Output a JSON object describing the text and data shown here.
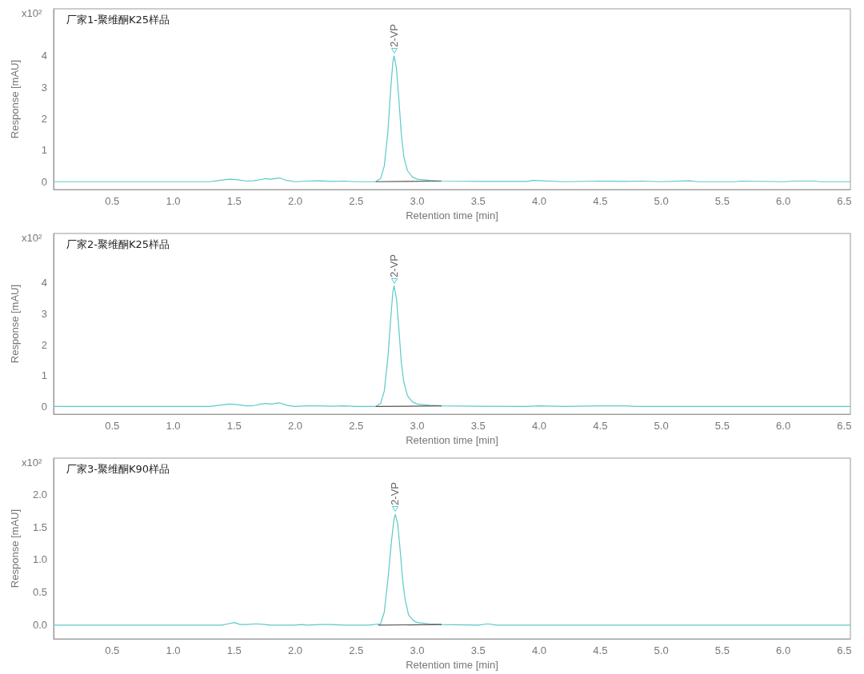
{
  "chart_data": [
    {
      "type": "line",
      "title": "厂家1-聚维酮K25样品",
      "xlabel": "Retention time [min]",
      "ylabel": "Response [mAU]",
      "xlim": [
        0.02,
        6.55
      ],
      "ylim": [
        -0.25,
        5.5
      ],
      "xticks": [
        0.5,
        {
          "value": 1,
          "label": "1.0"
        },
        1.5,
        {
          "value": 2,
          "label": "2.0"
        },
        2.5,
        {
          "value": 3,
          "label": "3.0"
        },
        3.5,
        {
          "value": 4,
          "label": "4.0"
        },
        4.5,
        {
          "value": 5,
          "label": "5.0"
        },
        5.5,
        {
          "value": 6,
          "label": "6.0"
        },
        6.5
      ],
      "yticks": [
        0,
        1,
        2,
        3,
        4
      ],
      "grid": false,
      "marker": "none",
      "line_style": "solid",
      "annotations": [
        "x10²",
        "2-VP"
      ],
      "series": [
        {
          "color": "#5cc9c9",
          "x": [
            0.02,
            1.3,
            1.38,
            1.46,
            1.53,
            1.6,
            1.66,
            1.72,
            1.76,
            1.8,
            1.87,
            1.93,
            2.0,
            2.1,
            2.2,
            2.3,
            2.4,
            2.5,
            2.6,
            2.66,
            2.7,
            2.73,
            2.76,
            2.78,
            2.8,
            2.81,
            2.83,
            2.85,
            2.87,
            2.89,
            2.92,
            2.96,
            3.0,
            3.1,
            3.2,
            3.5,
            3.9,
            3.95,
            4.2,
            4.5,
            4.7,
            4.85,
            5.0,
            5.23,
            5.3,
            5.6,
            5.65,
            6.0,
            6.1,
            6.25,
            6.3,
            6.55
          ],
          "values": [
            0,
            0,
            0.04,
            0.08,
            0.06,
            0.02,
            0.03,
            0.07,
            0.1,
            0.08,
            0.12,
            0.04,
            0,
            0.02,
            0.03,
            0.01,
            0.02,
            0,
            0,
            0,
            0.1,
            0.5,
            1.6,
            2.8,
            3.8,
            4.0,
            3.6,
            2.6,
            1.5,
            0.8,
            0.35,
            0.15,
            0.08,
            0.04,
            0.02,
            0.01,
            0.01,
            0.04,
            0,
            0.02,
            0.01,
            0.02,
            0,
            0.03,
            0,
            0,
            0.02,
            0,
            0.02,
            0.02,
            0,
            0
          ]
        },
        {
          "color": "#555555",
          "x": [
            2.66,
            3.2
          ],
          "values": [
            0,
            0.02
          ]
        }
      ]
    },
    {
      "type": "line",
      "title": "厂家2-聚维酮K25样品",
      "xlabel": "Retention time [min]",
      "ylabel": "Response [mAU]",
      "xlim": [
        0.02,
        6.55
      ],
      "ylim": [
        -0.25,
        5.6
      ],
      "xticks": [
        0.5,
        {
          "value": 1,
          "label": "1.0"
        },
        1.5,
        {
          "value": 2,
          "label": "2.0"
        },
        2.5,
        {
          "value": 3,
          "label": "3.0"
        },
        3.5,
        {
          "value": 4,
          "label": "4.0"
        },
        4.5,
        {
          "value": 5,
          "label": "5.0"
        },
        5.5,
        {
          "value": 6,
          "label": "6.0"
        },
        6.5
      ],
      "yticks": [
        0,
        1,
        2,
        3,
        4
      ],
      "grid": false,
      "marker": "none",
      "line_style": "solid",
      "annotations": [
        "x10²",
        "2-VP"
      ],
      "series": [
        {
          "color": "#5cc9c9",
          "x": [
            0.02,
            1.3,
            1.38,
            1.46,
            1.53,
            1.6,
            1.66,
            1.72,
            1.76,
            1.8,
            1.87,
            1.93,
            2.0,
            2.1,
            2.2,
            2.3,
            2.4,
            2.5,
            2.6,
            2.66,
            2.7,
            2.73,
            2.76,
            2.78,
            2.8,
            2.81,
            2.83,
            2.85,
            2.87,
            2.89,
            2.92,
            2.96,
            3.0,
            3.1,
            3.2,
            3.5,
            3.9,
            4.0,
            4.2,
            4.5,
            4.7,
            4.8,
            5.0,
            5.5,
            6.0,
            6.55
          ],
          "values": [
            0,
            0,
            0.04,
            0.08,
            0.06,
            0.02,
            0.03,
            0.08,
            0.1,
            0.08,
            0.12,
            0.04,
            0,
            0.02,
            0.02,
            0.01,
            0.02,
            0,
            0,
            0,
            0.1,
            0.5,
            1.6,
            2.7,
            3.7,
            3.9,
            3.5,
            2.5,
            1.4,
            0.8,
            0.35,
            0.15,
            0.08,
            0.04,
            0.02,
            0.01,
            0,
            0.02,
            0,
            0.02,
            0.02,
            0,
            0,
            0,
            0,
            0
          ]
        },
        {
          "color": "#555555",
          "x": [
            2.66,
            3.2
          ],
          "values": [
            0,
            0.02
          ]
        }
      ]
    },
    {
      "type": "line",
      "title": "厂家3-聚维酮K90样品",
      "xlabel": "Retention time [min]",
      "ylabel": "Response [mAU]",
      "xlim": [
        0.02,
        6.55
      ],
      "ylim": [
        -0.21,
        2.55
      ],
      "xticks": [
        0.5,
        {
          "value": 1,
          "label": "1.0"
        },
        1.5,
        {
          "value": 2,
          "label": "2.0"
        },
        2.5,
        {
          "value": 3,
          "label": "3.0"
        },
        3.5,
        {
          "value": 4,
          "label": "4.0"
        },
        4.5,
        {
          "value": 5,
          "label": "5.0"
        },
        5.5,
        {
          "value": 6,
          "label": "6.0"
        },
        6.5
      ],
      "yticks": [
        {
          "value": 0,
          "label": "0.0"
        },
        0.5,
        {
          "value": 1,
          "label": "1.0"
        },
        1.5,
        {
          "value": 2,
          "label": "2.0"
        }
      ],
      "grid": false,
      "marker": "none",
      "line_style": "solid",
      "annotations": [
        "x10²",
        "2-VP"
      ],
      "series": [
        {
          "color": "#5cc9c9",
          "x": [
            0.02,
            1.4,
            1.45,
            1.5,
            1.55,
            1.6,
            1.68,
            1.75,
            1.8,
            2.0,
            2.05,
            2.1,
            2.2,
            2.3,
            2.4,
            2.6,
            2.7,
            2.73,
            2.76,
            2.79,
            2.81,
            2.82,
            2.84,
            2.86,
            2.88,
            2.9,
            2.93,
            2.97,
            3.0,
            3.1,
            3.2,
            3.5,
            3.58,
            3.65,
            3.8,
            4.5,
            5.5,
            6.55
          ],
          "values": [
            0,
            0,
            0.02,
            0.04,
            0.01,
            0.01,
            0.02,
            0.01,
            0,
            0,
            0.01,
            0,
            0.01,
            0.01,
            0,
            0,
            0.02,
            0.2,
            0.7,
            1.3,
            1.62,
            1.69,
            1.55,
            1.15,
            0.7,
            0.4,
            0.15,
            0.07,
            0.04,
            0.02,
            0.01,
            0,
            0.02,
            0,
            0,
            0,
            0,
            0
          ]
        },
        {
          "color": "#555555",
          "x": [
            2.68,
            3.2
          ],
          "values": [
            0,
            0.01
          ]
        }
      ]
    }
  ]
}
